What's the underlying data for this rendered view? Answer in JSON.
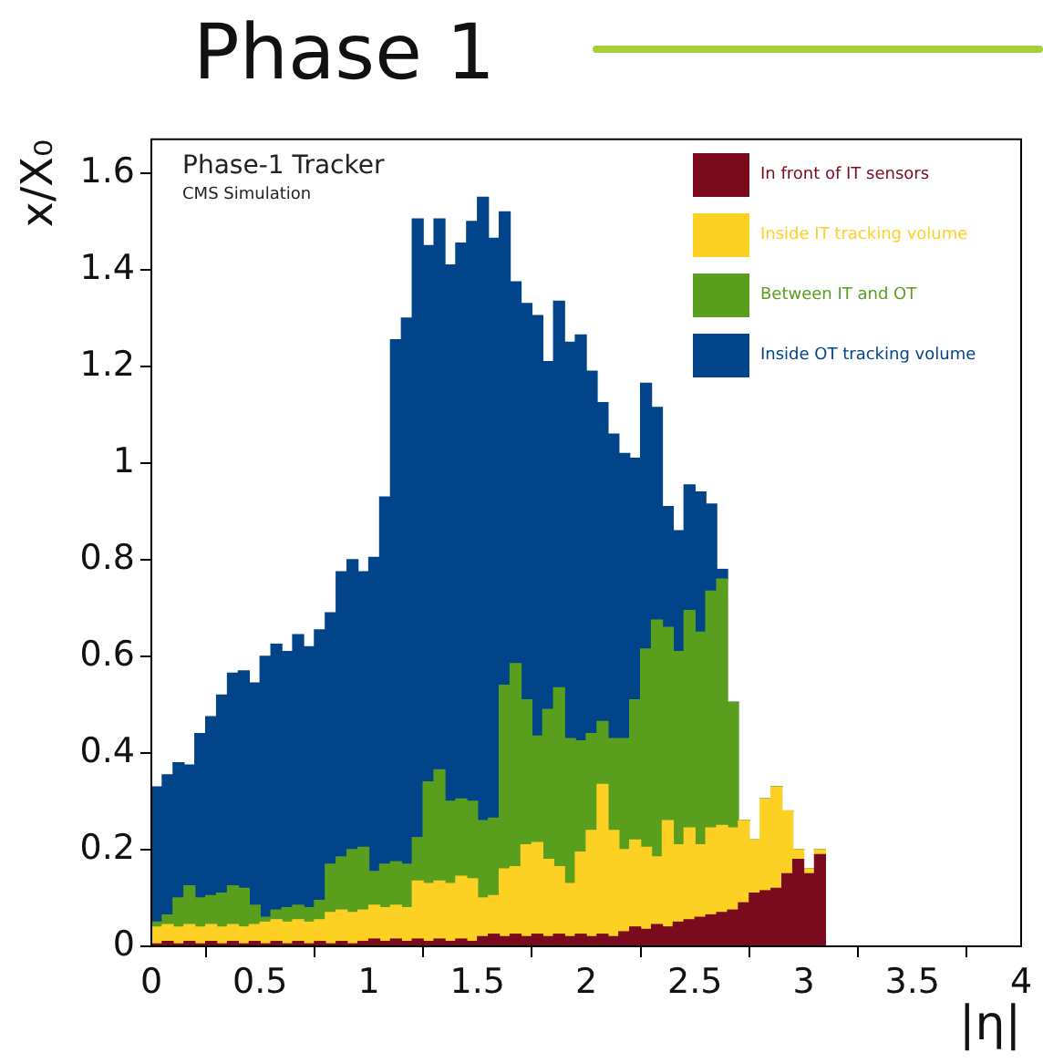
{
  "chart_data": {
    "type": "bar",
    "title": "Phase 1",
    "xlabel": "|η|",
    "ylabel": "x/X₀",
    "annotations": [
      "Phase-1 Tracker",
      "CMS Simulation"
    ],
    "x": [
      0.025,
      0.075,
      0.125,
      0.175,
      0.225,
      0.275,
      0.325,
      0.375,
      0.425,
      0.475,
      0.525,
      0.575,
      0.625,
      0.675,
      0.725,
      0.775,
      0.825,
      0.875,
      0.925,
      0.975,
      1.025,
      1.075,
      1.125,
      1.175,
      1.225,
      1.275,
      1.325,
      1.375,
      1.425,
      1.475,
      1.525,
      1.575,
      1.625,
      1.675,
      1.725,
      1.775,
      1.825,
      1.875,
      1.925,
      1.975,
      2.025,
      2.075,
      2.125,
      2.175,
      2.225,
      2.275,
      2.325,
      2.375,
      2.425,
      2.475,
      2.525,
      2.575,
      2.625,
      2.675,
      2.725,
      2.775,
      2.825,
      2.875,
      2.925,
      2.975,
      3.025,
      3.075
    ],
    "stacked": true,
    "series": [
      {
        "name": "In front of IT sensors",
        "color": "#7a0a1e",
        "values": [
          0.005,
          0.01,
          0.005,
          0.01,
          0.005,
          0.01,
          0.005,
          0.01,
          0.005,
          0.01,
          0.005,
          0.01,
          0.005,
          0.01,
          0.005,
          0.01,
          0.005,
          0.01,
          0.005,
          0.01,
          0.015,
          0.01,
          0.015,
          0.01,
          0.015,
          0.01,
          0.015,
          0.01,
          0.015,
          0.01,
          0.02,
          0.025,
          0.02,
          0.025,
          0.02,
          0.025,
          0.02,
          0.025,
          0.02,
          0.025,
          0.02,
          0.025,
          0.02,
          0.03,
          0.04,
          0.035,
          0.045,
          0.04,
          0.05,
          0.055,
          0.06,
          0.065,
          0.07,
          0.075,
          0.09,
          0.11,
          0.115,
          0.12,
          0.15,
          0.18,
          0.15,
          0.19
        ]
      },
      {
        "name": "Inside IT tracking volume",
        "color": "#fdd024",
        "values": [
          0.035,
          0.035,
          0.035,
          0.035,
          0.035,
          0.035,
          0.035,
          0.035,
          0.035,
          0.035,
          0.045,
          0.045,
          0.045,
          0.045,
          0.045,
          0.045,
          0.065,
          0.065,
          0.065,
          0.065,
          0.07,
          0.07,
          0.07,
          0.07,
          0.12,
          0.12,
          0.12,
          0.12,
          0.13,
          0.13,
          0.08,
          0.08,
          0.14,
          0.14,
          0.19,
          0.19,
          0.16,
          0.14,
          0.11,
          0.17,
          0.22,
          0.31,
          0.22,
          0.17,
          0.18,
          0.17,
          0.14,
          0.22,
          0.16,
          0.19,
          0.15,
          0.18,
          0.18,
          0.17,
          0.17,
          0.11,
          0.19,
          0.21,
          0.13,
          0.02,
          0.01,
          0.01
        ]
      },
      {
        "name": "Between IT and OT",
        "color": "#5a9e1e",
        "values": [
          0.01,
          0.02,
          0.06,
          0.08,
          0.06,
          0.06,
          0.07,
          0.08,
          0.08,
          0.04,
          0.01,
          0.02,
          0.03,
          0.03,
          0.03,
          0.04,
          0.1,
          0.11,
          0.13,
          0.13,
          0.07,
          0.09,
          0.09,
          0.09,
          0.09,
          0.21,
          0.23,
          0.17,
          0.16,
          0.16,
          0.16,
          0.16,
          0.38,
          0.42,
          0.3,
          0.22,
          0.31,
          0.37,
          0.3,
          0.23,
          0.2,
          0.13,
          0.19,
          0.23,
          0.29,
          0.41,
          0.49,
          0.4,
          0.4,
          0.45,
          0.44,
          0.49,
          0.51,
          0.26,
          0,
          0,
          0,
          0,
          0,
          0,
          0,
          0
        ]
      },
      {
        "name": "Inside OT tracking volume",
        "color": "#02448a",
        "values": [
          0.28,
          0.29,
          0.28,
          0.25,
          0.34,
          0.37,
          0.41,
          0.44,
          0.45,
          0.46,
          0.54,
          0.55,
          0.53,
          0.56,
          0.54,
          0.56,
          0.52,
          0.59,
          0.6,
          0.57,
          0.65,
          0.76,
          1.08,
          1.13,
          1.28,
          1.11,
          1.14,
          1.11,
          1.15,
          1.2,
          1.29,
          1.2,
          0.98,
          0.79,
          0.82,
          0.87,
          0.72,
          0.8,
          0.82,
          0.84,
          0.75,
          0.66,
          0.63,
          0.59,
          0.5,
          0.55,
          0.44,
          0.25,
          0.25,
          0.26,
          0.29,
          0.18,
          0.02,
          0,
          0,
          0,
          0,
          0,
          0,
          0,
          0,
          0
        ]
      }
    ],
    "xlim": [
      0,
      4
    ],
    "xticks": [
      0,
      0.5,
      1,
      1.5,
      2,
      2.5,
      3,
      3.5,
      4
    ],
    "ylim": [
      0,
      1.67
    ],
    "yticks": [
      0,
      0.2,
      0.4,
      0.6,
      0.8,
      1,
      1.2,
      1.4,
      1.6
    ],
    "legend": "top right"
  }
}
